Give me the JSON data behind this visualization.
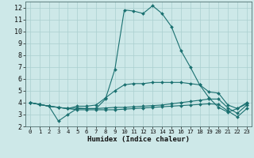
{
  "xlabel": "Humidex (Indice chaleur)",
  "xlim": [
    -0.5,
    23.5
  ],
  "ylim": [
    2,
    12.5
  ],
  "yticks": [
    2,
    3,
    4,
    5,
    6,
    7,
    8,
    9,
    10,
    11,
    12
  ],
  "xticks": [
    0,
    1,
    2,
    3,
    4,
    5,
    6,
    7,
    8,
    9,
    10,
    11,
    12,
    13,
    14,
    15,
    16,
    17,
    18,
    19,
    20,
    21,
    22,
    23
  ],
  "bg_color": "#cde8e8",
  "grid_color": "#aacfcf",
  "line_color": "#1a7070",
  "line1_x": [
    0,
    1,
    2,
    3,
    4,
    5,
    6,
    7,
    8,
    9,
    10,
    11,
    12,
    13,
    14,
    15,
    16,
    17,
    18,
    19,
    20,
    21,
    22,
    23
  ],
  "line1_y": [
    4.0,
    3.85,
    3.7,
    2.45,
    3.0,
    3.5,
    3.5,
    3.5,
    4.3,
    6.8,
    11.8,
    11.7,
    11.5,
    12.15,
    11.5,
    10.4,
    8.4,
    7.0,
    5.5,
    4.4,
    3.6,
    3.2,
    3.5,
    3.9
  ],
  "line2_x": [
    0,
    1,
    2,
    3,
    4,
    5,
    6,
    7,
    8,
    9,
    10,
    11,
    12,
    13,
    14,
    15,
    16,
    17,
    18,
    19,
    20,
    21,
    22,
    23
  ],
  "line2_y": [
    4.0,
    3.85,
    3.7,
    3.6,
    3.5,
    3.7,
    3.7,
    3.8,
    4.4,
    5.0,
    5.5,
    5.6,
    5.6,
    5.7,
    5.7,
    5.7,
    5.7,
    5.6,
    5.5,
    4.9,
    4.8,
    3.8,
    3.5,
    4.0
  ],
  "line3_x": [
    0,
    1,
    2,
    3,
    4,
    5,
    6,
    7,
    8,
    9,
    10,
    11,
    12,
    13,
    14,
    15,
    16,
    17,
    18,
    19,
    20,
    21,
    22,
    23
  ],
  "line3_y": [
    4.0,
    3.85,
    3.7,
    3.6,
    3.5,
    3.55,
    3.5,
    3.5,
    3.55,
    3.6,
    3.6,
    3.65,
    3.7,
    3.75,
    3.8,
    3.9,
    4.0,
    4.1,
    4.2,
    4.3,
    4.3,
    3.55,
    3.1,
    3.8
  ],
  "line4_x": [
    0,
    1,
    2,
    3,
    4,
    5,
    6,
    7,
    8,
    9,
    10,
    11,
    12,
    13,
    14,
    15,
    16,
    17,
    18,
    19,
    20,
    21,
    22,
    23
  ],
  "line4_y": [
    4.0,
    3.85,
    3.7,
    3.6,
    3.5,
    3.4,
    3.4,
    3.4,
    3.4,
    3.4,
    3.45,
    3.5,
    3.55,
    3.6,
    3.65,
    3.7,
    3.75,
    3.8,
    3.85,
    3.9,
    3.85,
    3.3,
    2.8,
    3.5
  ]
}
